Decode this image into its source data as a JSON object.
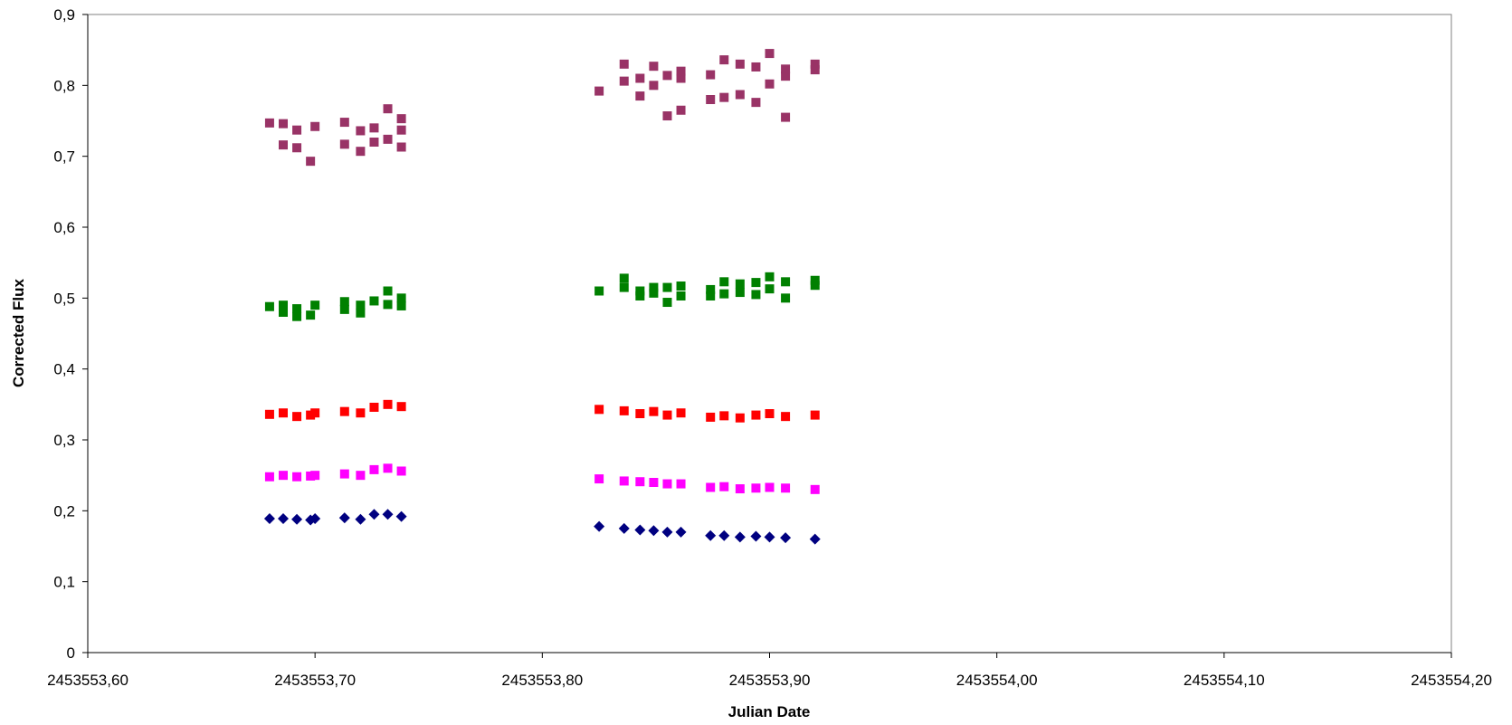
{
  "chart_data": {
    "type": "scatter",
    "title": "",
    "xlabel": "Julian Date",
    "ylabel": "Corrected Flux",
    "xlim": [
      2453553.6,
      2453554.2
    ],
    "ylim": [
      0,
      0.9
    ],
    "x_ticks": [
      2453553.6,
      2453553.7,
      2453553.8,
      2453553.9,
      2453554.0,
      2453554.1,
      2453554.2
    ],
    "x_tick_labels": [
      "2453553,60",
      "2453553,70",
      "2453553,80",
      "2453553,90",
      "2453554,00",
      "2453554,10",
      "2453554,20"
    ],
    "y_ticks": [
      0,
      0.1,
      0.2,
      0.3,
      0.4,
      0.5,
      0.6,
      0.7,
      0.8,
      0.9
    ],
    "y_tick_labels": [
      "0",
      "0,1",
      "0,2",
      "0,3",
      "0,4",
      "0,5",
      "0,6",
      "0,7",
      "0,8",
      "0,9"
    ],
    "grid": false,
    "legend": "none",
    "series": [
      {
        "marker": "diamond",
        "color": "#000080",
        "points": [
          [
            2453553.68,
            0.189
          ],
          [
            2453553.686,
            0.189
          ],
          [
            2453553.692,
            0.188
          ],
          [
            2453553.698,
            0.187
          ],
          [
            2453553.7,
            0.189
          ],
          [
            2453553.713,
            0.19
          ],
          [
            2453553.72,
            0.188
          ],
          [
            2453553.726,
            0.195
          ],
          [
            2453553.732,
            0.195
          ],
          [
            2453553.738,
            0.192
          ],
          [
            2453553.825,
            0.178
          ],
          [
            2453553.836,
            0.175
          ],
          [
            2453553.843,
            0.173
          ],
          [
            2453553.849,
            0.172
          ],
          [
            2453553.855,
            0.17
          ],
          [
            2453553.861,
            0.17
          ],
          [
            2453553.874,
            0.165
          ],
          [
            2453553.88,
            0.165
          ],
          [
            2453553.887,
            0.163
          ],
          [
            2453553.894,
            0.164
          ],
          [
            2453553.9,
            0.163
          ],
          [
            2453553.907,
            0.162
          ],
          [
            2453553.92,
            0.16
          ]
        ]
      },
      {
        "marker": "square",
        "color": "#FF00FF",
        "points": [
          [
            2453553.68,
            0.248
          ],
          [
            2453553.686,
            0.25
          ],
          [
            2453553.692,
            0.248
          ],
          [
            2453553.698,
            0.249
          ],
          [
            2453553.7,
            0.25
          ],
          [
            2453553.713,
            0.252
          ],
          [
            2453553.72,
            0.25
          ],
          [
            2453553.726,
            0.258
          ],
          [
            2453553.732,
            0.26
          ],
          [
            2453553.738,
            0.256
          ],
          [
            2453553.825,
            0.245
          ],
          [
            2453553.836,
            0.242
          ],
          [
            2453553.843,
            0.241
          ],
          [
            2453553.849,
            0.24
          ],
          [
            2453553.855,
            0.238
          ],
          [
            2453553.861,
            0.238
          ],
          [
            2453553.874,
            0.233
          ],
          [
            2453553.88,
            0.234
          ],
          [
            2453553.887,
            0.231
          ],
          [
            2453553.894,
            0.232
          ],
          [
            2453553.9,
            0.233
          ],
          [
            2453553.907,
            0.232
          ],
          [
            2453553.92,
            0.23
          ]
        ]
      },
      {
        "marker": "square",
        "color": "#FF0000",
        "points": [
          [
            2453553.68,
            0.336
          ],
          [
            2453553.686,
            0.338
          ],
          [
            2453553.692,
            0.333
          ],
          [
            2453553.698,
            0.335
          ],
          [
            2453553.7,
            0.338
          ],
          [
            2453553.713,
            0.34
          ],
          [
            2453553.72,
            0.338
          ],
          [
            2453553.726,
            0.346
          ],
          [
            2453553.732,
            0.35
          ],
          [
            2453553.738,
            0.347
          ],
          [
            2453553.825,
            0.343
          ],
          [
            2453553.836,
            0.341
          ],
          [
            2453553.843,
            0.337
          ],
          [
            2453553.849,
            0.34
          ],
          [
            2453553.855,
            0.335
          ],
          [
            2453553.861,
            0.338
          ],
          [
            2453553.874,
            0.332
          ],
          [
            2453553.88,
            0.334
          ],
          [
            2453553.887,
            0.331
          ],
          [
            2453553.894,
            0.335
          ],
          [
            2453553.9,
            0.337
          ],
          [
            2453553.907,
            0.333
          ],
          [
            2453553.92,
            0.335
          ]
        ]
      },
      {
        "marker": "square",
        "color": "#008000",
        "points": [
          [
            2453553.68,
            0.488
          ],
          [
            2453553.686,
            0.49
          ],
          [
            2453553.686,
            0.48
          ],
          [
            2453553.692,
            0.485
          ],
          [
            2453553.692,
            0.474
          ],
          [
            2453553.698,
            0.476
          ],
          [
            2453553.7,
            0.49
          ],
          [
            2453553.713,
            0.495
          ],
          [
            2453553.713,
            0.484
          ],
          [
            2453553.72,
            0.49
          ],
          [
            2453553.72,
            0.479
          ],
          [
            2453553.726,
            0.496
          ],
          [
            2453553.732,
            0.51
          ],
          [
            2453553.732,
            0.491
          ],
          [
            2453553.738,
            0.5
          ],
          [
            2453553.738,
            0.489
          ],
          [
            2453553.825,
            0.51
          ],
          [
            2453553.836,
            0.528
          ],
          [
            2453553.836,
            0.515
          ],
          [
            2453553.843,
            0.51
          ],
          [
            2453553.843,
            0.503
          ],
          [
            2453553.849,
            0.515
          ],
          [
            2453553.849,
            0.507
          ],
          [
            2453553.855,
            0.515
          ],
          [
            2453553.855,
            0.494
          ],
          [
            2453553.861,
            0.517
          ],
          [
            2453553.861,
            0.503
          ],
          [
            2453553.874,
            0.512
          ],
          [
            2453553.874,
            0.503
          ],
          [
            2453553.88,
            0.523
          ],
          [
            2453553.88,
            0.506
          ],
          [
            2453553.887,
            0.52
          ],
          [
            2453553.887,
            0.508
          ],
          [
            2453553.894,
            0.522
          ],
          [
            2453553.894,
            0.505
          ],
          [
            2453553.9,
            0.53
          ],
          [
            2453553.9,
            0.513
          ],
          [
            2453553.907,
            0.523
          ],
          [
            2453553.907,
            0.5
          ],
          [
            2453553.92,
            0.525
          ],
          [
            2453553.92,
            0.518
          ]
        ]
      },
      {
        "marker": "square",
        "color": "#993366",
        "points": [
          [
            2453553.68,
            0.747
          ],
          [
            2453553.686,
            0.746
          ],
          [
            2453553.686,
            0.716
          ],
          [
            2453553.692,
            0.737
          ],
          [
            2453553.692,
            0.712
          ],
          [
            2453553.698,
            0.693
          ],
          [
            2453553.7,
            0.742
          ],
          [
            2453553.713,
            0.748
          ],
          [
            2453553.713,
            0.717
          ],
          [
            2453553.72,
            0.736
          ],
          [
            2453553.72,
            0.707
          ],
          [
            2453553.726,
            0.74
          ],
          [
            2453553.726,
            0.72
          ],
          [
            2453553.732,
            0.767
          ],
          [
            2453553.732,
            0.724
          ],
          [
            2453553.738,
            0.753
          ],
          [
            2453553.738,
            0.737
          ],
          [
            2453553.738,
            0.713
          ],
          [
            2453553.825,
            0.792
          ],
          [
            2453553.836,
            0.83
          ],
          [
            2453553.836,
            0.806
          ],
          [
            2453553.843,
            0.81
          ],
          [
            2453553.843,
            0.785
          ],
          [
            2453553.849,
            0.827
          ],
          [
            2453553.849,
            0.8
          ],
          [
            2453553.855,
            0.814
          ],
          [
            2453553.855,
            0.757
          ],
          [
            2453553.861,
            0.82
          ],
          [
            2453553.861,
            0.81
          ],
          [
            2453553.861,
            0.765
          ],
          [
            2453553.874,
            0.815
          ],
          [
            2453553.874,
            0.78
          ],
          [
            2453553.88,
            0.836
          ],
          [
            2453553.88,
            0.783
          ],
          [
            2453553.887,
            0.83
          ],
          [
            2453553.887,
            0.787
          ],
          [
            2453553.894,
            0.826
          ],
          [
            2453553.894,
            0.776
          ],
          [
            2453553.9,
            0.845
          ],
          [
            2453553.9,
            0.802
          ],
          [
            2453553.907,
            0.823
          ],
          [
            2453553.907,
            0.813
          ],
          [
            2453553.907,
            0.755
          ],
          [
            2453553.92,
            0.83
          ],
          [
            2453553.92,
            0.822
          ]
        ]
      }
    ]
  }
}
